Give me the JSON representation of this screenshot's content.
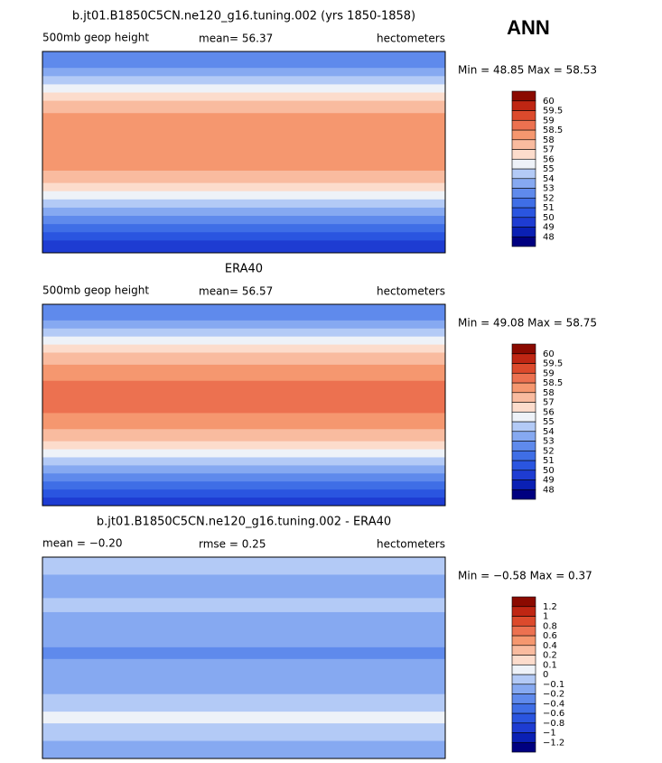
{
  "header": {
    "season": "ANN"
  },
  "panels": [
    {
      "title": "b.jt01.B1850C5CN.ne120_g16.tuning.002 (yrs 1850-1858)",
      "left_label": "500mb geop height",
      "stat1": "mean=  56.37",
      "units": "hectometers",
      "minmax": "Min =  48.85 Max =  58.53",
      "colorbar": {
        "labels": [
          "48",
          "49",
          "50",
          "51",
          "52",
          "53",
          "54",
          "55",
          "56",
          "57",
          "58",
          "58.5",
          "59",
          "59.5",
          "60"
        ],
        "colors": [
          "#000080",
          "#0a20b4",
          "#1e3cd2",
          "#2a55e0",
          "#3f6ee6",
          "#5f8aec",
          "#86a9f1",
          "#b3caf6",
          "#eef2f8",
          "#fcdccc",
          "#f9bb9f",
          "#f5976f",
          "#ec7150",
          "#dc4a2c",
          "#bf2613",
          "#8b0a00"
        ]
      }
    },
    {
      "title": "ERA40",
      "left_label": "500mb geop height",
      "stat1": "mean=  56.57",
      "units": "hectometers",
      "minmax": "Min =  49.08 Max =  58.75",
      "colorbar": {
        "labels": [
          "48",
          "49",
          "50",
          "51",
          "52",
          "53",
          "54",
          "55",
          "56",
          "57",
          "58",
          "58.5",
          "59",
          "59.5",
          "60"
        ],
        "colors": [
          "#000080",
          "#0a20b4",
          "#1e3cd2",
          "#2a55e0",
          "#3f6ee6",
          "#5f8aec",
          "#86a9f1",
          "#b3caf6",
          "#eef2f8",
          "#fcdccc",
          "#f9bb9f",
          "#f5976f",
          "#ec7150",
          "#dc4a2c",
          "#bf2613",
          "#8b0a00"
        ]
      }
    },
    {
      "title": "b.jt01.B1850C5CN.ne120_g16.tuning.002 - ERA40",
      "left_label": "mean =  −0.20",
      "stat1": "rmse =    0.25",
      "units": "hectometers",
      "minmax": "Min =  −0.58 Max =    0.37",
      "colorbar": {
        "labels": [
          "−1.2",
          "−1",
          "−0.8",
          "−0.6",
          "−0.4",
          "−0.2",
          "−0.1",
          "0",
          "0.1",
          "0.2",
          "0.4",
          "0.6",
          "0.8",
          "1",
          "1.2"
        ],
        "colors": [
          "#000080",
          "#0a20b4",
          "#1e3cd2",
          "#2a55e0",
          "#3f6ee6",
          "#5f8aec",
          "#86a9f1",
          "#b3caf6",
          "#eef2f8",
          "#fcdccc",
          "#f9bb9f",
          "#f5976f",
          "#ec7150",
          "#dc4a2c",
          "#bf2613",
          "#8b0a00"
        ]
      }
    }
  ]
}
